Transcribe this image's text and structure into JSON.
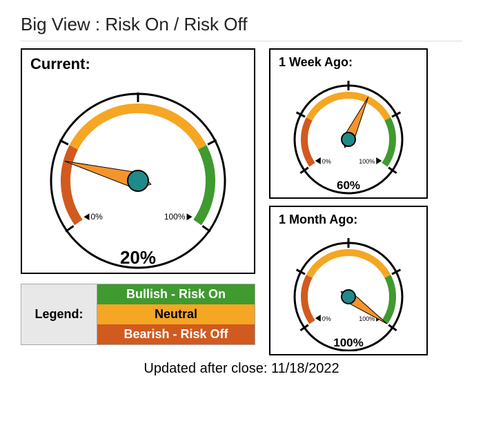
{
  "title": "Big View : Risk On / Risk Off",
  "footer_prefix": "Updated after close:  ",
  "footer_date": "11/18/2022",
  "gauges": {
    "current": {
      "label": "Current:",
      "value_pct": 20,
      "value_label": "20%",
      "min_label": "0%",
      "max_label": "100%",
      "svg_size": 300,
      "radius_outer": 126,
      "radius_inner": 105,
      "arc_width": 14,
      "needle_len": 110,
      "hub_r": 15,
      "title_fontsize": 22,
      "value_fontsize": 26,
      "minmax_fontsize": 12
    },
    "week": {
      "label": "1 Week Ago:",
      "value_pct": 60,
      "value_label": "60%",
      "min_label": "0%",
      "max_label": "100%",
      "svg_size": 190,
      "radius_outer": 78,
      "radius_inner": 64,
      "arc_width": 10,
      "needle_len": 68,
      "hub_r": 10,
      "title_fontsize": 18,
      "value_fontsize": 17,
      "minmax_fontsize": 9
    },
    "month": {
      "label": "1 Month Ago:",
      "value_pct": 100,
      "value_label": "100%",
      "min_label": "0%",
      "max_label": "100%",
      "svg_size": 190,
      "radius_outer": 78,
      "radius_inner": 64,
      "arc_width": 10,
      "needle_len": 68,
      "hub_r": 10,
      "title_fontsize": 18,
      "value_fontsize": 17,
      "minmax_fontsize": 9
    }
  },
  "gauge_style": {
    "start_angle_deg": 215,
    "end_angle_deg": -35,
    "segments": [
      {
        "from_pct": 0,
        "to_pct": 25,
        "color": "#d15a1f"
      },
      {
        "from_pct": 25,
        "to_pct": 75,
        "color": "#f5a623"
      },
      {
        "from_pct": 75,
        "to_pct": 100,
        "color": "#3f9a2f"
      }
    ],
    "outline_color": "#000000",
    "outline_width": 3,
    "tick_color": "#000000",
    "tick_width": 3,
    "tick_len": 14,
    "tick_positions_pct": [
      0,
      25,
      50,
      75,
      100
    ],
    "needle_color": "#f5942d",
    "needle_outline": "#000000",
    "hub_fill": "#1f8a8a",
    "hub_outline": "#000000",
    "face_fill": "#ffffff"
  },
  "legend": {
    "label": "Legend:",
    "rows": [
      {
        "text": "Bullish - Risk On",
        "bg": "#3f9a2f",
        "fg": "#ffffff"
      },
      {
        "text": "Neutral",
        "bg": "#f5a623",
        "fg": "#000000"
      },
      {
        "text": "Bearish - Risk Off",
        "bg": "#d15a1f",
        "fg": "#ffffff"
      }
    ]
  }
}
